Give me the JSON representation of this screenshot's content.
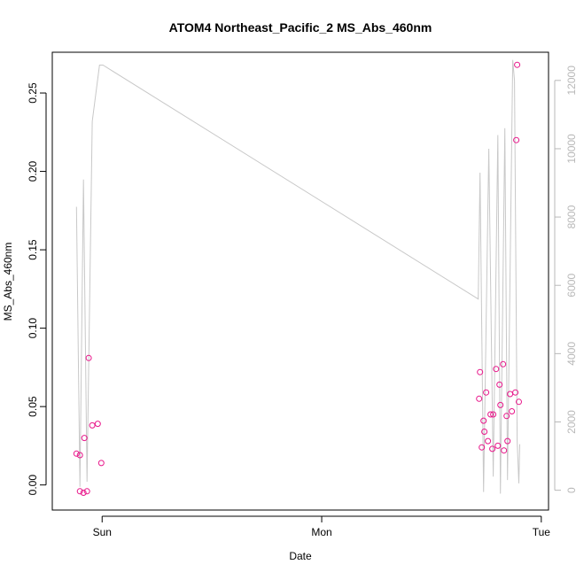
{
  "chart_data": {
    "type": "scatter",
    "title": "ATOM4 Northeast_Pacific_2 MS_Abs_460nm",
    "xlabel": "Date",
    "ylabel": "MS_Abs_460nm",
    "xlim": [
      -0.227,
      2.033
    ],
    "ylim": [
      -0.016,
      0.276
    ],
    "x_ticks": [
      {
        "value": 0,
        "label": "Sun"
      },
      {
        "value": 1,
        "label": "Mon"
      },
      {
        "value": 2,
        "label": "Tue"
      }
    ],
    "y_ticks": [
      {
        "value": 0.0,
        "label": "0.00"
      },
      {
        "value": 0.05,
        "label": "0.05"
      },
      {
        "value": 0.1,
        "label": "0.10"
      },
      {
        "value": 0.15,
        "label": "0.15"
      },
      {
        "value": 0.2,
        "label": "0.20"
      },
      {
        "value": 0.25,
        "label": "0.25"
      }
    ],
    "y2lim": [
      -580,
      12825
    ],
    "y2_ticks": [
      {
        "value": 0,
        "label": "0"
      },
      {
        "value": 2000,
        "label": "2000"
      },
      {
        "value": 4000,
        "label": "4000"
      },
      {
        "value": 6000,
        "label": "6000"
      },
      {
        "value": 8000,
        "label": "8000"
      },
      {
        "value": 10000,
        "label": "10000"
      },
      {
        "value": 12000,
        "label": "12000"
      }
    ],
    "grid": false,
    "legend": "none",
    "series": [
      {
        "type": "scatter",
        "axis": "left",
        "color": "#e8168a",
        "points": [
          {
            "x": -0.117,
            "y": 0.02
          },
          {
            "x": -0.101,
            "y": 0.019
          },
          {
            "x": -0.101,
            "y": -0.004
          },
          {
            "x": -0.085,
            "y": -0.005
          },
          {
            "x": -0.081,
            "y": 0.03
          },
          {
            "x": -0.069,
            "y": -0.004
          },
          {
            "x": -0.061,
            "y": 0.081
          },
          {
            "x": -0.045,
            "y": 0.038
          },
          {
            "x": -0.02,
            "y": 0.039
          },
          {
            "x": -0.004,
            "y": 0.014
          },
          {
            "x": 1.717,
            "y": 0.055
          },
          {
            "x": 1.721,
            "y": 0.072
          },
          {
            "x": 1.729,
            "y": 0.024
          },
          {
            "x": 1.737,
            "y": 0.041
          },
          {
            "x": 1.741,
            "y": 0.034
          },
          {
            "x": 1.749,
            "y": 0.059
          },
          {
            "x": 1.757,
            "y": 0.028
          },
          {
            "x": 1.769,
            "y": 0.045
          },
          {
            "x": 1.777,
            "y": 0.023
          },
          {
            "x": 1.781,
            "y": 0.045
          },
          {
            "x": 1.794,
            "y": 0.074
          },
          {
            "x": 1.802,
            "y": 0.025
          },
          {
            "x": 1.81,
            "y": 0.064
          },
          {
            "x": 1.814,
            "y": 0.051
          },
          {
            "x": 1.826,
            "y": 0.077
          },
          {
            "x": 1.83,
            "y": 0.022
          },
          {
            "x": 1.842,
            "y": 0.044
          },
          {
            "x": 1.846,
            "y": 0.028
          },
          {
            "x": 1.858,
            "y": 0.058
          },
          {
            "x": 1.866,
            "y": 0.047
          },
          {
            "x": 1.882,
            "y": 0.059
          },
          {
            "x": 1.886,
            "y": 0.22
          },
          {
            "x": 1.89,
            "y": 0.268
          },
          {
            "x": 1.898,
            "y": 0.053
          }
        ]
      },
      {
        "type": "line",
        "axis": "right",
        "color": "#c8c8c8",
        "points": [
          {
            "x": -0.117,
            "y": 8300
          },
          {
            "x": -0.101,
            "y": 100
          },
          {
            "x": -0.085,
            "y": 9100
          },
          {
            "x": -0.069,
            "y": 250
          },
          {
            "x": -0.045,
            "y": 10800
          },
          {
            "x": -0.012,
            "y": 12450
          },
          {
            "x": 0.004,
            "y": 12450
          },
          {
            "x": 1.713,
            "y": 5600
          },
          {
            "x": 1.721,
            "y": 9300
          },
          {
            "x": 1.737,
            "y": -50
          },
          {
            "x": 1.761,
            "y": 10000
          },
          {
            "x": 1.781,
            "y": 400
          },
          {
            "x": 1.802,
            "y": 10400
          },
          {
            "x": 1.814,
            "y": -100
          },
          {
            "x": 1.834,
            "y": 10600
          },
          {
            "x": 1.846,
            "y": 300
          },
          {
            "x": 1.87,
            "y": 12600
          },
          {
            "x": 1.878,
            "y": 12000
          },
          {
            "x": 1.89,
            "y": 1450
          },
          {
            "x": 1.898,
            "y": 200
          },
          {
            "x": 1.902,
            "y": 1350
          }
        ]
      }
    ]
  }
}
